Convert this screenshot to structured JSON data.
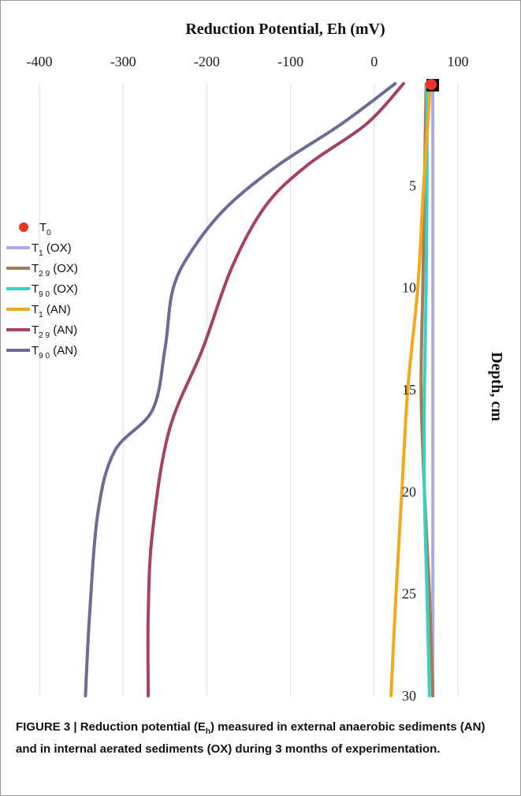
{
  "chart_data": {
    "type": "line",
    "title": "",
    "xlabel": "Reduction Potential, Eh (mV)",
    "ylabel": "Depth, cm",
    "xlim": [
      -400,
      100
    ],
    "ylim": [
      0,
      30
    ],
    "x_axis_position": "top",
    "y_axis_position": "right",
    "y_inverted": true,
    "x_ticks": [
      "-400",
      "-300",
      "-200",
      "-100",
      "0",
      "100"
    ],
    "y_ticks": [
      "5",
      "10",
      "15",
      "20",
      "25",
      "30"
    ],
    "grid": "vertical",
    "legend_position": "left",
    "series": [
      {
        "name_main": "T",
        "name_sub": "0",
        "name_suffix": "",
        "color": "#e8372a",
        "marker": "circle",
        "points": [
          [
            68,
            0
          ]
        ]
      },
      {
        "name_main": "T",
        "name_sub": "1",
        "name_suffix": " (OX)",
        "color": "#a9a9ec",
        "points": [
          [
            70,
            0
          ],
          [
            70,
            5
          ],
          [
            70,
            10
          ],
          [
            70,
            15
          ],
          [
            70,
            20
          ],
          [
            70,
            25
          ],
          [
            70,
            30
          ]
        ]
      },
      {
        "name_main": "T",
        "name_sub": "2 9",
        "name_suffix": "  (OX)",
        "color": "#a67c52",
        "points": [
          [
            62,
            0
          ],
          [
            60,
            5
          ],
          [
            58,
            10
          ],
          [
            56,
            15
          ],
          [
            60,
            20
          ],
          [
            66,
            25
          ],
          [
            70,
            30
          ]
        ]
      },
      {
        "name_main": "T",
        "name_sub": "9 0",
        "name_suffix": " (OX)",
        "color": "#3ccfc8",
        "points": [
          [
            63,
            0
          ],
          [
            63,
            5
          ],
          [
            62,
            10
          ],
          [
            60,
            15
          ],
          [
            60,
            20
          ],
          [
            63,
            25
          ],
          [
            66,
            30
          ]
        ]
      },
      {
        "name_main": "T",
        "name_sub": "1",
        "name_suffix": "  (AN)",
        "color": "#f4a81c",
        "points": [
          [
            67,
            0
          ],
          [
            59,
            5
          ],
          [
            52,
            10
          ],
          [
            40,
            15
          ],
          [
            33,
            20
          ],
          [
            26,
            25
          ],
          [
            20,
            30
          ]
        ]
      },
      {
        "name_main": "T",
        "name_sub": "2 9",
        "name_suffix": " (AN)",
        "color": "#a63f6a",
        "points": [
          [
            35,
            0
          ],
          [
            -10,
            2
          ],
          [
            -80,
            4
          ],
          [
            -130,
            6
          ],
          [
            -170,
            9
          ],
          [
            -205,
            13
          ],
          [
            -245,
            17
          ],
          [
            -265,
            22
          ],
          [
            -270,
            26
          ],
          [
            -270,
            30
          ]
        ]
      },
      {
        "name_main": "T",
        "name_sub": "9 0",
        "name_suffix": " (AN)",
        "color": "#6c6d96",
        "points": [
          [
            25,
            0
          ],
          [
            -40,
            2
          ],
          [
            -115,
            4
          ],
          [
            -175,
            6
          ],
          [
            -215,
            8
          ],
          [
            -240,
            10
          ],
          [
            -250,
            13
          ],
          [
            -265,
            16
          ],
          [
            -310,
            18
          ],
          [
            -330,
            21
          ],
          [
            -340,
            26
          ],
          [
            -345,
            30
          ]
        ]
      }
    ]
  },
  "caption": {
    "label": "FIGURE 3 | ",
    "text_before": "Reduction potential (E",
    "sub": "h",
    "text_after": ") measured in external anaerobic sediments (AN) and in internal aerated sediments (OX) during 3 months of experimentation."
  }
}
